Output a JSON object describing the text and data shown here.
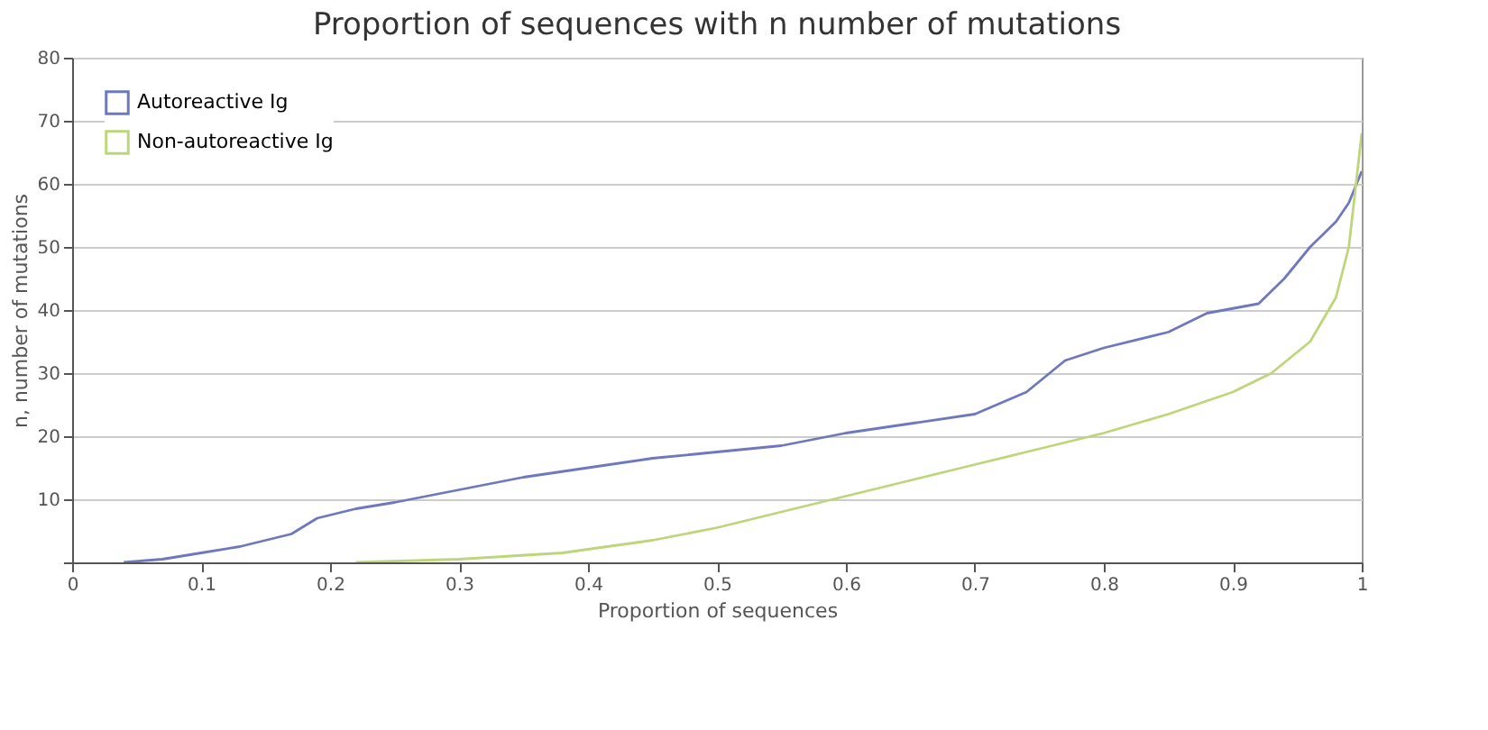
{
  "chart_data": {
    "type": "line",
    "title": "Proportion of sequences with n number of mutations",
    "xlabel": "Proportion of sequences",
    "ylabel": "n, number of mutations",
    "xlim": [
      0,
      1
    ],
    "xticks": [
      0,
      0.1,
      0.2,
      0.3,
      0.4,
      0.5,
      0.6,
      0.7,
      0.8,
      0.9,
      1
    ],
    "ylim": [
      0,
      80
    ],
    "yticks": [
      {
        "value": 0,
        "label": null
      },
      10,
      20,
      30,
      40,
      50,
      60,
      70,
      80
    ],
    "grid": "y",
    "legend": "top left",
    "line_style": "solid",
    "marker": "none",
    "series": [
      {
        "name": "Autoreactive Ig",
        "color": "#6f78be",
        "x": [
          0.04,
          0.07,
          0.1,
          0.13,
          0.17,
          0.19,
          0.22,
          0.25,
          0.3,
          0.35,
          0.4,
          0.45,
          0.5,
          0.55,
          0.6,
          0.65,
          0.7,
          0.74,
          0.77,
          0.8,
          0.85,
          0.88,
          0.92,
          0.94,
          0.96,
          0.98,
          0.99,
          1.0
        ],
        "values": [
          0,
          0.5,
          1.5,
          2.5,
          4.5,
          7,
          8.5,
          9.5,
          11.5,
          13.5,
          15,
          16.5,
          17.5,
          18.5,
          20.5,
          22,
          23.5,
          27,
          32,
          34,
          36.5,
          39.5,
          41,
          45,
          50,
          54,
          57,
          62
        ]
      },
      {
        "name": "Non-autoreactive Ig",
        "color": "#bdd67a",
        "x": [
          0.22,
          0.3,
          0.38,
          0.45,
          0.5,
          0.55,
          0.6,
          0.65,
          0.7,
          0.75,
          0.8,
          0.85,
          0.9,
          0.93,
          0.96,
          0.98,
          0.99,
          1.0
        ],
        "values": [
          0,
          0.5,
          1.5,
          3.5,
          5.5,
          8,
          10.5,
          13,
          15.5,
          18,
          20.5,
          23.5,
          27,
          30,
          35,
          42,
          50,
          68
        ]
      }
    ]
  }
}
